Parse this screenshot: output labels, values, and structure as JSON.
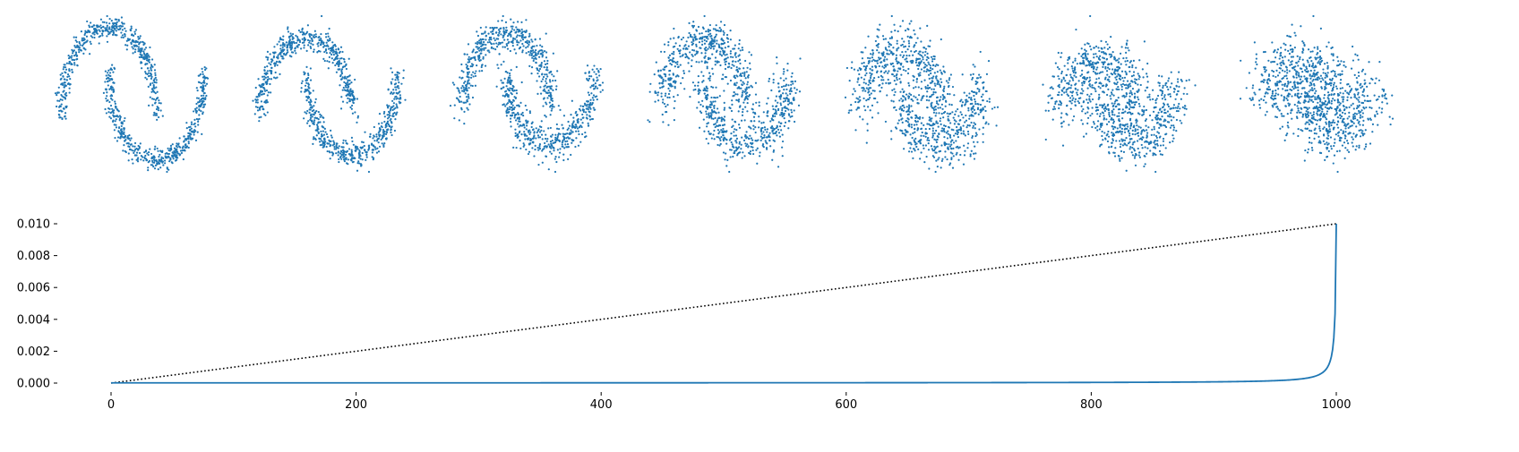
{
  "colors": {
    "scatter": "#1f77b4",
    "curve": "#1f77b4",
    "linear": "#000000",
    "axis": "#000000"
  },
  "chart_data": [
    {
      "type": "scatter",
      "title": "",
      "panels": 7,
      "points_per_panel": 1000,
      "dataset": "two-moons",
      "noise_std_by_panel": [
        0.06,
        0.08,
        0.11,
        0.16,
        0.21,
        0.27,
        0.4
      ],
      "axes_visible": false
    },
    {
      "type": "line",
      "title": "",
      "xlabel": "",
      "ylabel": "",
      "xlim": [
        -50,
        1045
      ],
      "ylim": [
        0,
        0.0105
      ],
      "xticks": [
        "0",
        "200",
        "400",
        "600",
        "800",
        "1000"
      ],
      "yticks": [
        "0.000",
        "0.002",
        "0.004",
        "0.006",
        "0.008",
        "0.010"
      ],
      "grid": false,
      "series": [
        {
          "style": "dotted",
          "color": "#000000",
          "x": [
            0,
            1000
          ],
          "y": [
            0,
            0.01
          ]
        },
        {
          "style": "solid",
          "color": "#1f77b4",
          "x": [
            0,
            900,
            950,
            980,
            990,
            995,
            999,
            1000
          ],
          "y": [
            0,
            0.0001,
            0.0002,
            0.0005,
            0.001,
            0.002,
            0.006,
            0.01
          ]
        }
      ]
    }
  ]
}
